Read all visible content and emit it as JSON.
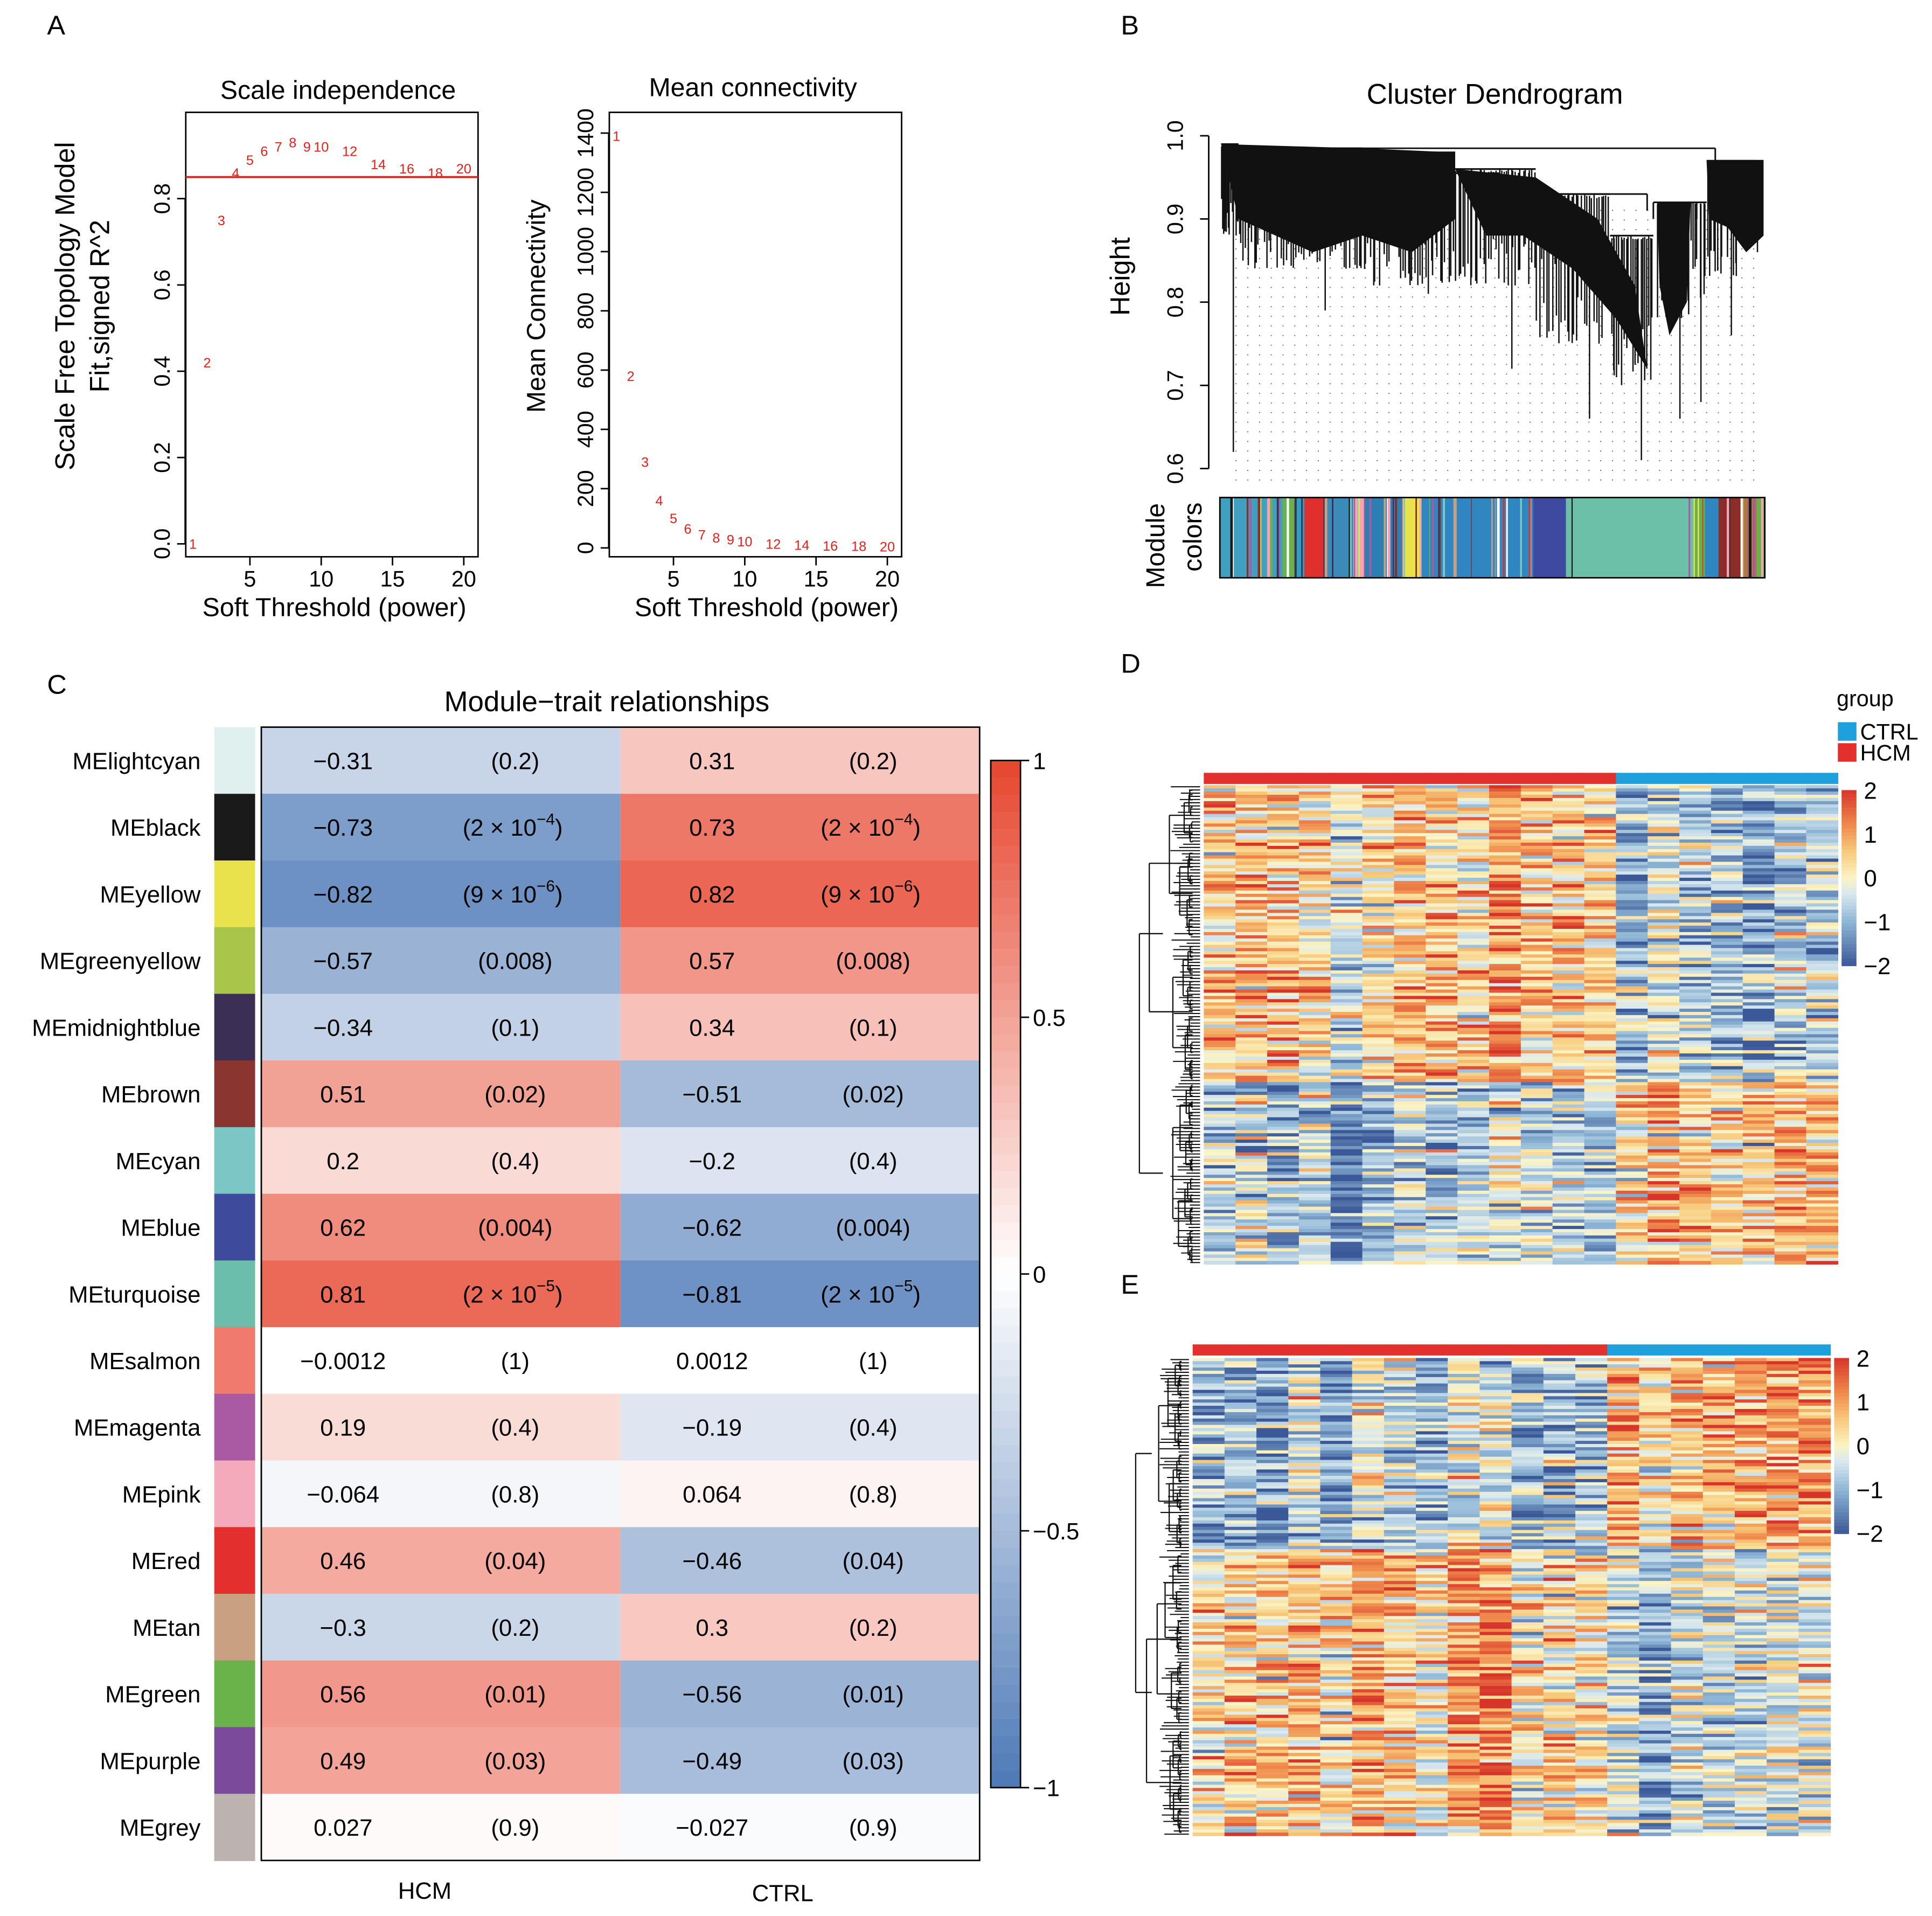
{
  "panel_labels": [
    "A",
    "B",
    "C",
    "D",
    "E"
  ],
  "chart_data": [
    {
      "id": "scale_independence",
      "type": "scatter",
      "title": "Scale independence",
      "xlabel": "Soft Threshold (power)",
      "ylabel_lines": [
        "Scale Free Topology Model",
        "Fit,signed R^2"
      ],
      "xlim": [
        0.5,
        21
      ],
      "ylim": [
        -0.03,
        1.0
      ],
      "xticks": [
        5,
        10,
        15,
        20
      ],
      "yticks": [
        0.0,
        0.2,
        0.4,
        0.6,
        0.8
      ],
      "ytick_labels": [
        "0.0",
        "0.2",
        "0.4",
        "0.6",
        "0.8"
      ],
      "hline": 0.85,
      "point_color": "#e3201b",
      "powers": [
        1,
        2,
        3,
        4,
        5,
        6,
        7,
        8,
        9,
        10,
        12,
        14,
        16,
        18,
        20
      ],
      "values": [
        0.0,
        0.42,
        0.75,
        0.86,
        0.89,
        0.91,
        0.92,
        0.93,
        0.92,
        0.92,
        0.91,
        0.88,
        0.87,
        0.86,
        0.87
      ]
    },
    {
      "id": "mean_connectivity",
      "type": "scatter",
      "title": "Mean connectivity",
      "xlabel": "Soft Threshold (power)",
      "ylabel": "Mean Connectivity",
      "xlim": [
        0.5,
        21
      ],
      "ylim": [
        -30,
        1470
      ],
      "xticks": [
        5,
        10,
        15,
        20
      ],
      "yticks": [
        0,
        200,
        400,
        600,
        800,
        1000,
        1200,
        1400
      ],
      "point_color": "#e3201b",
      "powers": [
        1,
        2,
        3,
        4,
        5,
        6,
        7,
        8,
        9,
        10,
        12,
        14,
        16,
        18,
        20
      ],
      "values": [
        1390,
        580,
        290,
        160,
        100,
        65,
        45,
        35,
        28,
        22,
        14,
        10,
        7,
        6,
        5
      ]
    },
    {
      "id": "cluster_dendrogram",
      "type": "dendrogram",
      "title": "Cluster Dendrogram",
      "ylabel": "Height",
      "ylim": [
        0.58,
        1.0
      ],
      "yticks": [
        0.6,
        0.7,
        0.8,
        0.9,
        1.0
      ],
      "ytick_labels": [
        "0.6",
        "0.7",
        "0.8",
        "0.9",
        "1.0"
      ],
      "module_bar_label_lines": [
        "Module",
        "colors"
      ],
      "module_bands": [
        {
          "color": "#40a0c0",
          "from": 0.0,
          "to": 0.115
        },
        {
          "color": "#6ab04c",
          "from": 0.115,
          "to": 0.14
        },
        {
          "color": "#30a0c0",
          "from": 0.14,
          "to": 0.155
        },
        {
          "color": "#e0302e",
          "from": 0.155,
          "to": 0.19
        },
        {
          "color": "#3c8ab8",
          "from": 0.19,
          "to": 0.245
        },
        {
          "color": "#f5a3b5",
          "from": 0.245,
          "to": 0.265
        },
        {
          "color": "#2c7fb0",
          "from": 0.265,
          "to": 0.335
        },
        {
          "color": "#e8e34a",
          "from": 0.335,
          "to": 0.37
        },
        {
          "color": "#2f86c0",
          "from": 0.37,
          "to": 0.575
        },
        {
          "color": "#3e4aa0",
          "from": 0.575,
          "to": 0.635
        },
        {
          "color": "#6cc0a8",
          "from": 0.635,
          "to": 0.87
        },
        {
          "color": "#6ab04c",
          "from": 0.87,
          "to": 0.89
        },
        {
          "color": "#2f86c0",
          "from": 0.89,
          "to": 0.915
        },
        {
          "color": "#8b2e2a",
          "from": 0.915,
          "to": 0.955
        },
        {
          "color": "#b07a3a",
          "from": 0.955,
          "to": 0.985
        },
        {
          "color": "#6ab04c",
          "from": 0.985,
          "to": 1.0
        }
      ]
    },
    {
      "id": "module_trait_relationships",
      "type": "heatmap",
      "title": "Module−trait relationships",
      "traits": [
        "HCM",
        "CTRL"
      ],
      "colorbar_ticks": [
        1,
        0.5,
        0,
        -0.5,
        -1
      ],
      "colorbar_tick_labels": [
        "1",
        "0.5",
        "0",
        "−0.5",
        "−1"
      ],
      "modules": [
        {
          "name": "MElightcyan",
          "color": "#e0f0ee",
          "hcm_r": -0.31,
          "hcm_r_label": "−0.31",
          "hcm_p": "(0.2)",
          "ctrl_r": 0.31,
          "ctrl_r_label": "0.31",
          "ctrl_p": "(0.2)"
        },
        {
          "name": "MEblack",
          "color": "#1a1a1a",
          "hcm_r": -0.73,
          "hcm_r_label": "−0.73",
          "hcm_p": "(2 × 10",
          "hcm_p_exp": "−4",
          "ctrl_r": 0.73,
          "ctrl_r_label": "0.73",
          "ctrl_p": "(2 × 10",
          "ctrl_p_exp": "−4"
        },
        {
          "name": "MEyellow",
          "color": "#e9e24b",
          "hcm_r": -0.82,
          "hcm_r_label": "−0.82",
          "hcm_p": "(9 × 10",
          "hcm_p_exp": "−6",
          "ctrl_r": 0.82,
          "ctrl_r_label": "0.82",
          "ctrl_p": "(9 × 10",
          "ctrl_p_exp": "−6"
        },
        {
          "name": "MEgreenyellow",
          "color": "#a8c64a",
          "hcm_r": -0.57,
          "hcm_r_label": "−0.57",
          "hcm_p": "(0.008)",
          "ctrl_r": 0.57,
          "ctrl_r_label": "0.57",
          "ctrl_p": "(0.008)"
        },
        {
          "name": "MEmidnightblue",
          "color": "#3b2f55",
          "hcm_r": -0.34,
          "hcm_r_label": "−0.34",
          "hcm_p": "(0.1)",
          "ctrl_r": 0.34,
          "ctrl_r_label": "0.34",
          "ctrl_p": "(0.1)"
        },
        {
          "name": "MEbrown",
          "color": "#8b3530",
          "hcm_r": 0.51,
          "hcm_r_label": "0.51",
          "hcm_p": "(0.02)",
          "ctrl_r": -0.51,
          "ctrl_r_label": "−0.51",
          "ctrl_p": "(0.02)"
        },
        {
          "name": "MEcyan",
          "color": "#7cc7c6",
          "hcm_r": 0.2,
          "hcm_r_label": "0.2",
          "hcm_p": "(0.4)",
          "ctrl_r": -0.2,
          "ctrl_r_label": "−0.2",
          "ctrl_p": "(0.4)"
        },
        {
          "name": "MEblue",
          "color": "#3e4b9c",
          "hcm_r": 0.62,
          "hcm_r_label": "0.62",
          "hcm_p": "(0.004)",
          "ctrl_r": -0.62,
          "ctrl_r_label": "−0.62",
          "ctrl_p": "(0.004)"
        },
        {
          "name": "MEturquoise",
          "color": "#6bbfaa",
          "hcm_r": 0.81,
          "hcm_r_label": "0.81",
          "hcm_p": "(2 × 10",
          "hcm_p_exp": "−5",
          "ctrl_r": -0.81,
          "ctrl_r_label": "−0.81",
          "ctrl_p": "(2 × 10",
          "ctrl_p_exp": "−5"
        },
        {
          "name": "MEsalmon",
          "color": "#f07a6e",
          "hcm_r": -0.0012,
          "hcm_r_label": "−0.0012",
          "hcm_p": "(1)",
          "ctrl_r": 0.0012,
          "ctrl_r_label": "0.0012",
          "ctrl_p": "(1)"
        },
        {
          "name": "MEmagenta",
          "color": "#a95aa0",
          "hcm_r": 0.19,
          "hcm_r_label": "0.19",
          "hcm_p": "(0.4)",
          "ctrl_r": -0.19,
          "ctrl_r_label": "−0.19",
          "ctrl_p": "(0.4)"
        },
        {
          "name": "MEpink",
          "color": "#f4aab8",
          "hcm_r": -0.064,
          "hcm_r_label": "−0.064",
          "hcm_p": "(0.8)",
          "ctrl_r": 0.064,
          "ctrl_r_label": "0.064",
          "ctrl_p": "(0.8)"
        },
        {
          "name": "MEred",
          "color": "#e3302d",
          "hcm_r": 0.46,
          "hcm_r_label": "0.46",
          "hcm_p": "(0.04)",
          "ctrl_r": -0.46,
          "ctrl_r_label": "−0.46",
          "ctrl_p": "(0.04)"
        },
        {
          "name": "MEtan",
          "color": "#c7a182",
          "hcm_r": -0.3,
          "hcm_r_label": "−0.3",
          "hcm_p": "(0.2)",
          "ctrl_r": 0.3,
          "ctrl_r_label": "0.3",
          "ctrl_p": "(0.2)"
        },
        {
          "name": "MEgreen",
          "color": "#6ab24a",
          "hcm_r": 0.56,
          "hcm_r_label": "0.56",
          "hcm_p": "(0.01)",
          "ctrl_r": -0.56,
          "ctrl_r_label": "−0.56",
          "ctrl_p": "(0.01)"
        },
        {
          "name": "MEpurple",
          "color": "#7b4b9a",
          "hcm_r": 0.49,
          "hcm_r_label": "0.49",
          "hcm_p": "(0.03)",
          "ctrl_r": -0.49,
          "ctrl_r_label": "−0.49",
          "ctrl_p": "(0.03)"
        },
        {
          "name": "MEgrey",
          "color": "#bcb3b0",
          "hcm_r": 0.027,
          "hcm_r_label": "0.027",
          "hcm_p": "(0.9)",
          "ctrl_r": -0.027,
          "ctrl_r_label": "−0.027",
          "ctrl_p": "(0.9)"
        }
      ]
    },
    {
      "id": "heatmap_D",
      "type": "heatmap",
      "legend_title": "group",
      "groups": [
        {
          "name": "CTRL",
          "color": "#1ea0dc"
        },
        {
          "name": "HCM",
          "color": "#e3302d"
        }
      ],
      "samples": {
        "HCM": 13,
        "CTRL": 7
      },
      "colorbar_ticks": [
        2,
        1,
        0,
        -1,
        -2
      ],
      "colorbar_tick_labels": [
        "2",
        "1",
        "0",
        "−1",
        "−2"
      ],
      "pattern": "HCM-up genes on top (~62%), CTRL-up genes below"
    },
    {
      "id": "heatmap_E",
      "type": "heatmap",
      "samples": {
        "HCM": 13,
        "CTRL": 7
      },
      "colorbar_ticks": [
        2,
        1,
        0,
        -1,
        -2
      ],
      "colorbar_tick_labels": [
        "2",
        "1",
        "0",
        "−1",
        "−2"
      ],
      "pattern": "CTRL-up genes on top (~40%), HCM-up genes below"
    }
  ]
}
